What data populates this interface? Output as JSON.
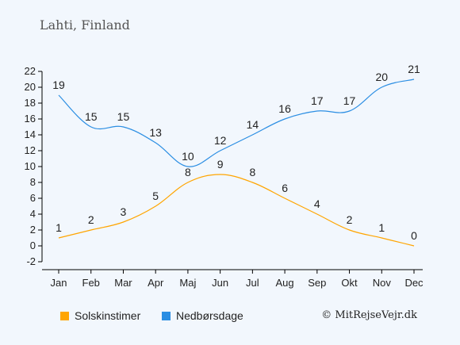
{
  "title": "Lahti, Finland",
  "credit": "© MitRejseVejr.dk",
  "colors": {
    "sun": "#ffa500",
    "rain": "#2b8ee3",
    "axis": "#000000",
    "background": "#f2f7fd"
  },
  "chart_data": {
    "type": "line",
    "title": "",
    "xlabel": "",
    "ylabel": "",
    "categories": [
      "Jan",
      "Feb",
      "Mar",
      "Apr",
      "Maj",
      "Jun",
      "Jul",
      "Aug",
      "Sep",
      "Okt",
      "Nov",
      "Dec"
    ],
    "ylim": [
      -2,
      22
    ],
    "yticks": [
      -2,
      0,
      2,
      4,
      6,
      8,
      10,
      12,
      14,
      16,
      18,
      20,
      22
    ],
    "grid": false,
    "legend_position": "bottom",
    "series": [
      {
        "name": "Solskinstimer",
        "values": [
          1,
          2,
          3,
          5,
          8,
          9,
          8,
          6,
          4,
          2,
          1,
          0
        ]
      },
      {
        "name": "Nedbørsdage",
        "values": [
          19,
          15,
          15,
          13,
          10,
          12,
          14,
          16,
          17,
          17,
          20,
          21
        ]
      }
    ]
  }
}
